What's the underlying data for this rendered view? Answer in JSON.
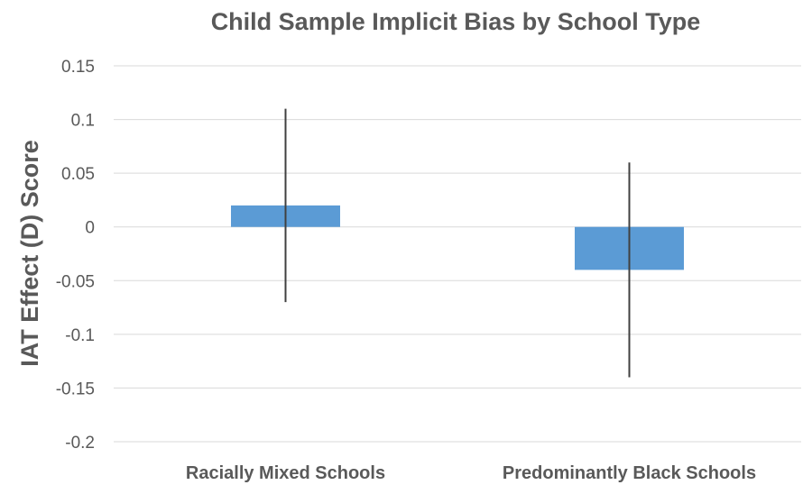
{
  "chart_data": {
    "type": "bar",
    "title": "Child Sample Implicit Bias by School Type",
    "xlabel": "",
    "ylabel": "IAT Effect (D) Score",
    "categories": [
      "Racially Mixed Schools",
      "Predominantly Black Schools"
    ],
    "values": [
      0.02,
      -0.04
    ],
    "error_bars": [
      {
        "low": -0.07,
        "high": 0.11
      },
      {
        "low": -0.14,
        "high": 0.06
      }
    ],
    "ylim": [
      -0.2,
      0.15
    ],
    "yticks": [
      0.15,
      0.1,
      0.05,
      0,
      -0.05,
      -0.1,
      -0.15,
      -0.2
    ],
    "ytick_labels": [
      "0.15",
      "0.1",
      "0.05",
      "0",
      "-0.05",
      "-0.1",
      "-0.15",
      "-0.2"
    ],
    "grid": true,
    "legend": "none",
    "colors": {
      "bar": "#5b9bd5",
      "error_bar": "#404040",
      "grid": "#d9d9d9",
      "text": "#595959"
    }
  }
}
